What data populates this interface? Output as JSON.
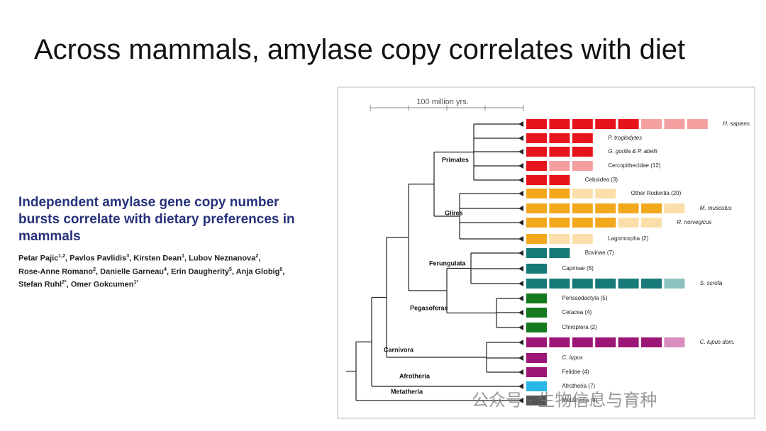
{
  "title": "Across mammals, amylase copy correlates with diet",
  "paper": {
    "title": "Independent amylase gene copy number bursts correlate with dietary preferences in mammals",
    "authors": [
      {
        "name": "Petar Pajic",
        "aff": "1,2"
      },
      {
        "name": "Pavlos Pavlidis",
        "aff": "3"
      },
      {
        "name": "Kirsten Dean",
        "aff": "1"
      },
      {
        "name": "Lubov Neznanova",
        "aff": "2"
      },
      {
        "name": "Rose-Anne Romano",
        "aff": "2"
      },
      {
        "name": "Danielle Garneau",
        "aff": "4"
      },
      {
        "name": "Erin Daugherity",
        "aff": "5"
      },
      {
        "name": "Anja Globig",
        "aff": "6"
      },
      {
        "name": "Stefan Ruhl",
        "aff": "2*"
      },
      {
        "name": "Omer Gokcumen",
        "aff": "1*"
      }
    ]
  },
  "figure": {
    "scale_label": "100 million yrs.",
    "clades": [
      {
        "name": "Primates",
        "color": "#e8141c",
        "light": "#f4a0a0",
        "taxa": [
          {
            "label": "H. sapiens",
            "solid": 5,
            "light": 3
          },
          {
            "label": "P. troglodytes",
            "solid": 3,
            "light": 0
          },
          {
            "label": "G. gorilla & P. abelii",
            "solid": 3,
            "light": 0
          },
          {
            "label": "Cercopithecidae (12)",
            "solid": 1,
            "light": 2
          },
          {
            "label": "Ceboidea (3)",
            "solid": 2,
            "light": 0
          }
        ]
      },
      {
        "name": "Glires",
        "color": "#f2a81d",
        "light": "#fbdfaa",
        "taxa": [
          {
            "label": "Other Rodentia (20)",
            "solid": 2,
            "light": 2
          },
          {
            "label": "M. musculus",
            "solid": 6,
            "light": 1
          },
          {
            "label": "R. norvegicus",
            "solid": 4,
            "light": 2
          },
          {
            "label": "Lagomorpha (2)",
            "solid": 1,
            "light": 2
          }
        ]
      },
      {
        "name": "Ferungulata",
        "color": "#177a78",
        "light": "#8cc2bd",
        "taxa": [
          {
            "label": "Bovinae (7)",
            "solid": 2,
            "light": 0
          },
          {
            "label": "Caprinae (6)",
            "solid": 1,
            "light": 0
          },
          {
            "label": "S. scrofa",
            "solid": 6,
            "light": 1
          }
        ]
      },
      {
        "name": "Pegasoferae",
        "color": "#157a1e",
        "light": "#8cc08f",
        "taxa": [
          {
            "label": "Perissodactyla (5)",
            "solid": 1,
            "light": 0
          },
          {
            "label": "Cetacea (4)",
            "solid": 1,
            "light": 0
          },
          {
            "label": "Chiroptera (2)",
            "solid": 1,
            "light": 0
          }
        ]
      },
      {
        "name": "Carnivora",
        "color": "#9c1677",
        "light": "#d88cbf",
        "taxa": [
          {
            "label": "C. lupus dom.",
            "solid": 6,
            "light": 1
          },
          {
            "label": "C. lupus",
            "solid": 1,
            "light": 0
          },
          {
            "label": "Felidae (4)",
            "solid": 1,
            "light": 0
          }
        ]
      },
      {
        "name": "Afrotheria",
        "color": "#27b8e8",
        "light": "#a6def2",
        "taxa": [
          {
            "label": "Afrotheria (7)",
            "solid": 1,
            "light": 0
          }
        ]
      },
      {
        "name": "Metatheria",
        "color": "#555555",
        "light": "#bbbbbb",
        "taxa": [
          {
            "label": "Metatheria (3)",
            "solid": 1,
            "light": 0
          }
        ]
      }
    ]
  },
  "watermark": "公众号 · 生物信息与育种"
}
